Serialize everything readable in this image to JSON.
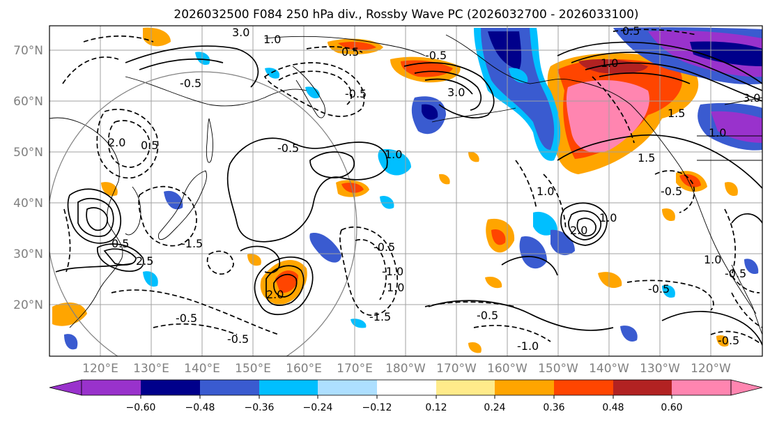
{
  "figure": {
    "title": "2026032500 F084 250 hPa div., Rossby Wave PC (2026032700 - 2026033100)"
  },
  "map": {
    "lat_labels": [
      "70°N",
      "60°N",
      "50°N",
      "40°N",
      "30°N",
      "20°N"
    ],
    "lat_values": [
      70,
      60,
      50,
      40,
      30,
      20
    ],
    "lon_labels": [
      "120°E",
      "130°E",
      "140°E",
      "150°E",
      "160°E",
      "170°E",
      "180°W",
      "170°W",
      "160°W",
      "150°W",
      "140°W",
      "130°W",
      "120°W"
    ],
    "lon_values": [
      120,
      130,
      140,
      150,
      160,
      170,
      180,
      190,
      200,
      210,
      220,
      230,
      240
    ],
    "extent": {
      "lon_min": 110,
      "lon_max": 250,
      "lat_min": 10,
      "lat_max": 75
    },
    "contour_labels": [
      "3.0",
      "1.0",
      "0.5",
      "0.5",
      "-0.5",
      "3.0",
      "1.0",
      "-0.5",
      "1.0",
      "1.0",
      "-0.5",
      "2.0",
      "1.0",
      "-0.5",
      "-1.5",
      "-0.5",
      "-1.0",
      "-0.5",
      "-0.5",
      "-0.5",
      "2.0",
      "1.0",
      "1.5",
      "1.0",
      "-0.5",
      "0.5",
      "1.0",
      "0.5",
      "2.5",
      "2.0",
      "1.5",
      "-0.5",
      "-0.5",
      "-1.0",
      "-1.5",
      "-0.5",
      "3.0"
    ]
  },
  "colorbar": {
    "colors": [
      "#9932CC",
      "#00008B",
      "#3A5BD0",
      "#00BFFF",
      "#ADDFFF",
      "#FFFFFF",
      "#FFEB8A",
      "#FFA500",
      "#FF4500",
      "#B22222",
      "#FF85B0"
    ],
    "tick_labels": [
      "−0.60",
      "−0.48",
      "−0.36",
      "−0.24",
      "−0.12",
      "0.12",
      "0.24",
      "0.36",
      "0.48",
      "0.60"
    ]
  }
}
